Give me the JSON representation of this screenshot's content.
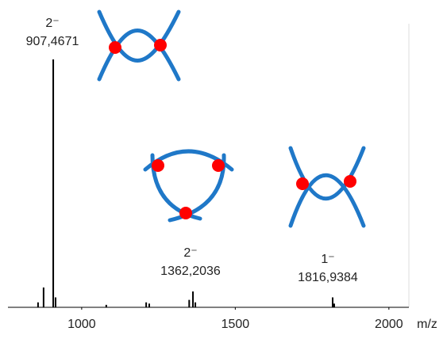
{
  "chart_data": {
    "type": "stem",
    "x_label": "m/z",
    "x": [
      858,
      876,
      907.4671,
      915,
      1080,
      1210,
      1220,
      1350,
      1362.2036,
      1370,
      1816.9384,
      1822
    ],
    "values": [
      2,
      8,
      100,
      4,
      1,
      2,
      1.5,
      3,
      6.4,
      2,
      4,
      1.5
    ],
    "color": "#000000",
    "xlim": [
      760,
      2065
    ],
    "xticks": [
      1000,
      1500,
      2000
    ],
    "ylim": [
      0,
      100
    ],
    "annotations": [
      {
        "charge": "2⁻",
        "mass": "907,4671"
      },
      {
        "charge": "2⁻",
        "mass": "1362,2036"
      },
      {
        "charge": "1⁻",
        "mass": "1816,9384"
      }
    ]
  }
}
